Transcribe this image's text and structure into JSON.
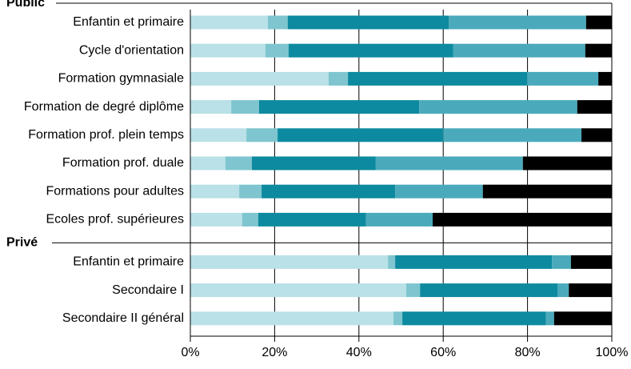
{
  "chart_data": {
    "type": "stacked-bar-horizontal",
    "groups": [
      {
        "name": "Public",
        "categories": [
          "Enfantin et primaire",
          "Cycle d'orientation",
          "Formation gymnasiale",
          "Formation de degré diplôme",
          "Formation prof. plein temps",
          "Formation prof. duale",
          "Formations pour adultes",
          "Ecoles prof. supérieures"
        ]
      },
      {
        "name": "Privé",
        "categories": [
          "Enfantin et primaire",
          "Secondaire I",
          "Secondaire II général"
        ]
      }
    ],
    "series": [
      {
        "color": "#b9e1e7",
        "values": [
          18.4,
          17.8,
          32.8,
          9.7,
          13.3,
          8.3,
          11.6,
          12.3,
          46.9,
          51.2,
          48.2
        ]
      },
      {
        "color": "#7ec5cf",
        "values": [
          4.7,
          5.5,
          4.6,
          6.6,
          7.4,
          6.3,
          5.3,
          3.8,
          1.7,
          3.3,
          2.1
        ]
      },
      {
        "color": "#0d8a9f",
        "values": [
          38.2,
          39.1,
          42.5,
          38.0,
          39.3,
          29.4,
          31.7,
          25.6,
          37.2,
          32.6,
          34.1
        ]
      },
      {
        "color": "#4aaabc",
        "values": [
          32.6,
          31.3,
          16.9,
          37.5,
          32.8,
          34.9,
          20.8,
          15.8,
          4.5,
          2.7,
          1.9
        ]
      },
      {
        "color": "#000000",
        "values": [
          6.1,
          6.3,
          3.2,
          8.2,
          7.2,
          21.1,
          30.6,
          42.5,
          9.7,
          10.2,
          13.7
        ]
      }
    ],
    "xlim": [
      0,
      100
    ],
    "xticks": [
      {
        "value": 0,
        "label": "0%"
      },
      {
        "value": 20,
        "label": "20%"
      },
      {
        "value": 40,
        "label": "40%"
      },
      {
        "value": 60,
        "label": "60%"
      },
      {
        "value": 80,
        "label": "80%"
      },
      {
        "value": 100,
        "label": "100%"
      }
    ],
    "grid": true
  }
}
